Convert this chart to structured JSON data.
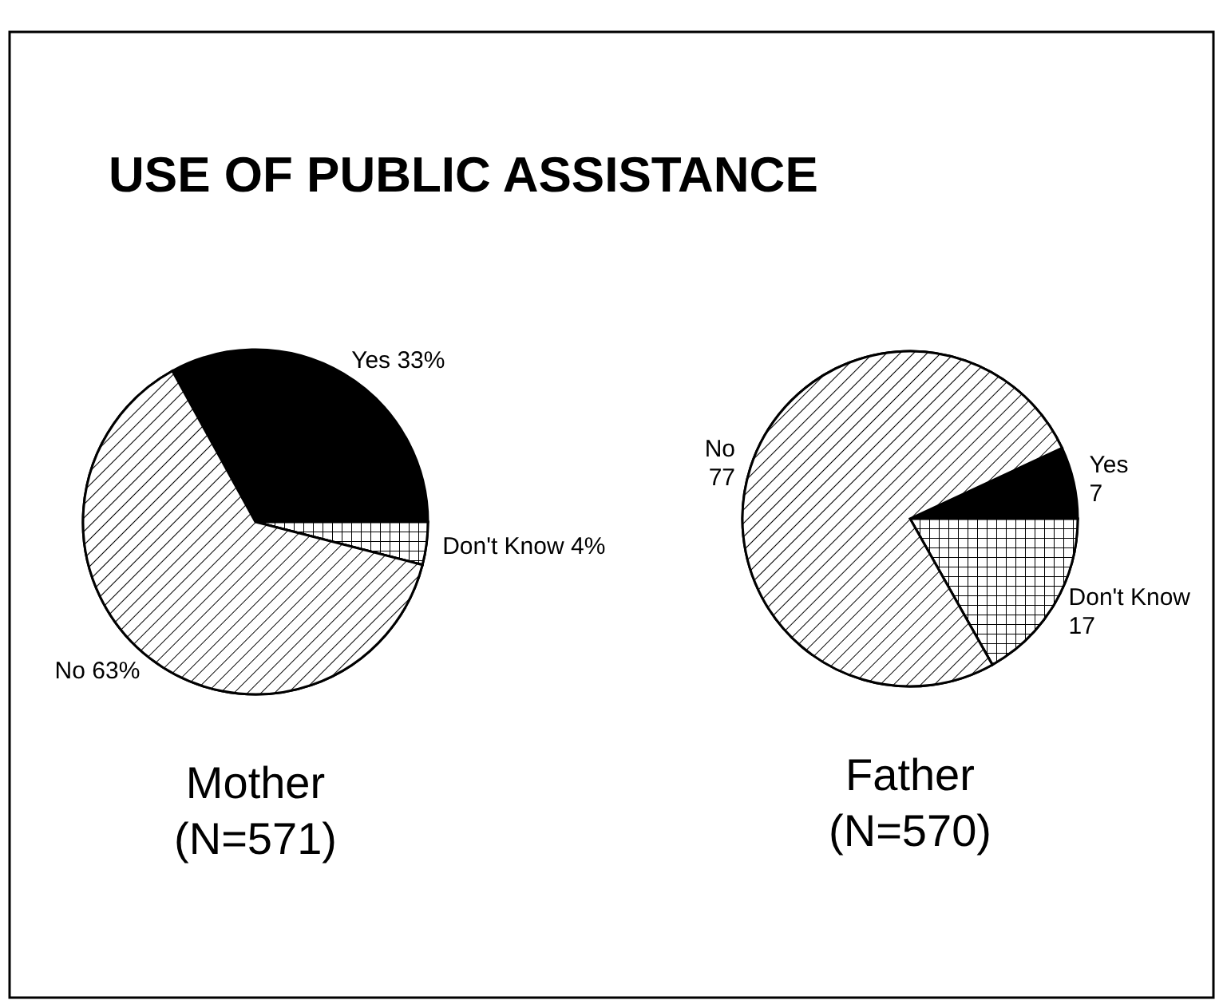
{
  "chart_data": [
    {
      "type": "pie",
      "title": "USE OF PUBLIC ASSISTANCE",
      "xlabel": "Mother",
      "annotations": [
        "(N=571)"
      ],
      "categories": [
        "Yes",
        "Don't Know",
        "No"
      ],
      "values": [
        33,
        4,
        63
      ],
      "value_labels": [
        "33%",
        "4%",
        "63%"
      ],
      "colors": [
        "#000000",
        "#ffffff",
        "#ffffff"
      ]
    },
    {
      "type": "pie",
      "xlabel": "Father",
      "annotations": [
        "(N=570)"
      ],
      "categories": [
        "Yes",
        "Don't Know",
        "No"
      ],
      "values": [
        7,
        17,
        77
      ],
      "value_labels": [
        "7",
        "17",
        "77"
      ],
      "colors": [
        "#000000",
        "#ffffff",
        "#ffffff"
      ]
    }
  ]
}
